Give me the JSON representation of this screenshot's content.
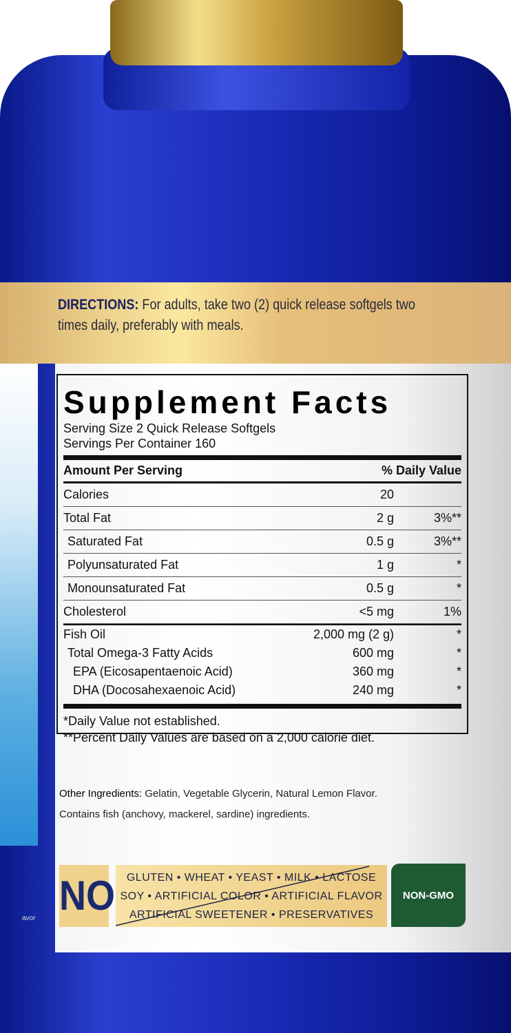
{
  "directions": {
    "label": "DIRECTIONS:",
    "text": " For adults, take two (2) quick release softgels two times daily, preferably with meals."
  },
  "facts": {
    "title": "Supplement Facts",
    "serving_size": "Serving Size 2 Quick Release Softgels",
    "servings": "Servings Per Container 160",
    "header": {
      "amount": "Amount Per Serving",
      "dv": "% Daily Value"
    },
    "rows": [
      {
        "name": "Calories",
        "amount": "20",
        "dv": ""
      },
      {
        "name": "Total Fat",
        "amount": "2 g",
        "dv": "3%**"
      },
      {
        "name": "Saturated Fat",
        "amount": "0.5 g",
        "dv": "3%**"
      },
      {
        "name": "Polyunsaturated Fat",
        "amount": "1 g",
        "dv": "*"
      },
      {
        "name": "Monounsaturated Fat",
        "amount": "0.5 g",
        "dv": "*"
      },
      {
        "name": "Cholesterol",
        "amount": "<5 mg",
        "dv": "1%"
      }
    ],
    "oil_rows": [
      {
        "name": "Fish Oil",
        "amount": "2,000 mg (2 g)",
        "dv": "*"
      },
      {
        "name": "Total Omega-3 Fatty Acids",
        "amount": "600 mg",
        "dv": "*"
      },
      {
        "name": "EPA (Eicosapentaenoic Acid)",
        "amount": "360 mg",
        "dv": "*"
      },
      {
        "name": "DHA (Docosahexaenoic Acid)",
        "amount": "240 mg",
        "dv": "*"
      }
    ],
    "footnote1": "*Daily Value not established.",
    "footnote2": "**Percent Daily Values are based on a 2,000 calorie diet."
  },
  "other_ingredients": {
    "label": "Other Ingredients:",
    "text": " Gelatin, Vegetable Glycerin, Natural Lemon Flavor."
  },
  "contains": "Contains fish (anchovy, mackerel, sardine) ingredients.",
  "free_from": {
    "no": "NO",
    "line1": "GLUTEN • WHEAT • YEAST • MILK • LACTOSE",
    "line2": "SOY • ARTIFICIAL COLOR • ARTIFICIAL FLAVOR",
    "line3": "ARTIFICIAL SWEETENER • PRESERVATIVES"
  },
  "badge": "NON-GMO",
  "side_text": "avor",
  "colors": {
    "bottle": "#1b2cb8",
    "cap": "#d8b860",
    "band": "#f3d890",
    "navy": "#1a2a70",
    "green": "#1e5a32"
  }
}
